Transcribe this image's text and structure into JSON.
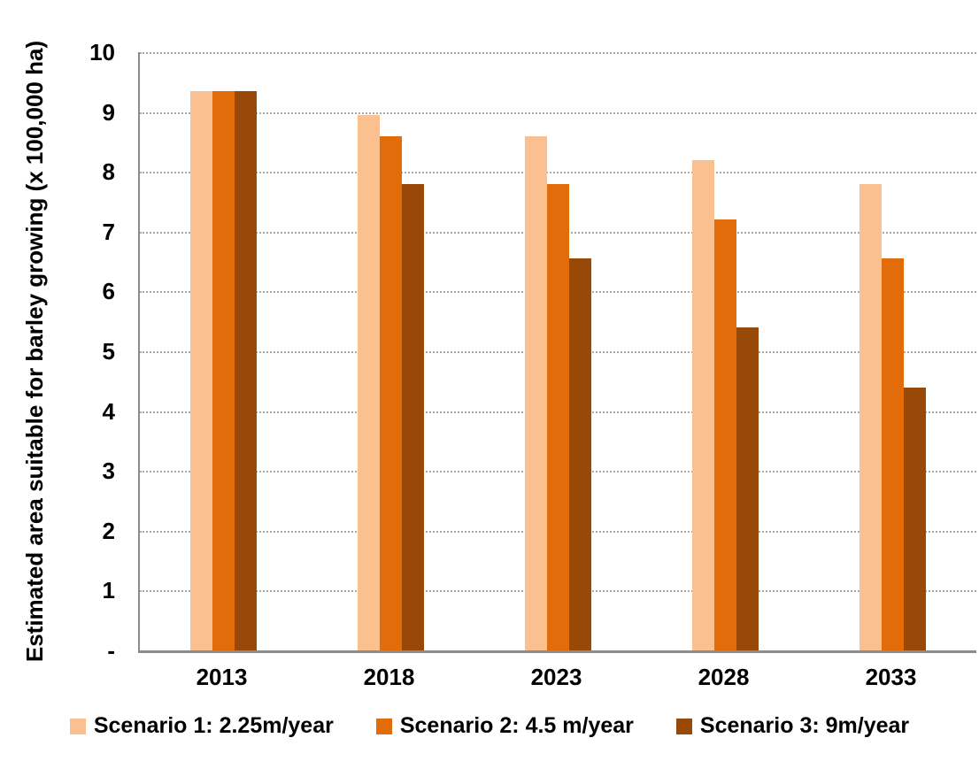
{
  "chart_data": {
    "type": "bar",
    "title": "",
    "xlabel": "",
    "ylabel": "Estimated area suitable for barley growing  (x 100,000 ha)",
    "categories": [
      "2013",
      "2018",
      "2023",
      "2028",
      "2033"
    ],
    "series": [
      {
        "name": "Scenario 1: 2.25m/year",
        "color": "#FAC090",
        "values": [
          9.35,
          8.95,
          8.6,
          8.2,
          7.8
        ]
      },
      {
        "name": "Scenario 2: 4.5 m/year",
        "color": "#E36C0A",
        "values": [
          9.35,
          8.6,
          7.8,
          7.2,
          6.55
        ]
      },
      {
        "name": "Scenario 3: 9m/year",
        "color": "#984807",
        "values": [
          9.35,
          7.8,
          6.55,
          5.4,
          4.4
        ]
      }
    ],
    "ylim": [
      0,
      10
    ],
    "ytick_step": 1,
    "ytick_labels": [
      "-",
      "1",
      "2",
      "3",
      "4",
      "5",
      "6",
      "7",
      "8",
      "9",
      "10"
    ],
    "grid": "horizontal-dotted",
    "legend_position": "bottom",
    "colors": {
      "gridline": "#a9a9a9",
      "axis": "#8c8c8c",
      "text": "#000000",
      "background": "#ffffff"
    }
  }
}
